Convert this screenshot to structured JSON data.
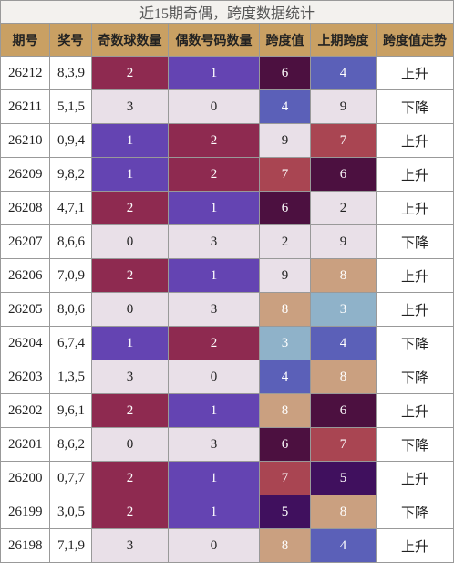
{
  "title": "近15期奇偶，跨度数据统计",
  "table": {
    "headers": [
      "期号",
      "奖号",
      "奇数球数量",
      "偶数号码数量",
      "跨度值",
      "上期跨度",
      "跨度值走势"
    ],
    "rows": [
      [
        "26212",
        "8,3,9",
        2,
        1,
        6,
        4,
        "上升"
      ],
      [
        "26211",
        "5,1,5",
        3,
        0,
        4,
        9,
        "下降"
      ],
      [
        "26210",
        "0,9,4",
        1,
        2,
        9,
        7,
        "上升"
      ],
      [
        "26209",
        "9,8,2",
        1,
        2,
        7,
        6,
        "上升"
      ],
      [
        "26208",
        "4,7,1",
        2,
        1,
        6,
        2,
        "上升"
      ],
      [
        "26207",
        "8,6,6",
        0,
        3,
        2,
        9,
        "下降"
      ],
      [
        "26206",
        "7,0,9",
        2,
        1,
        9,
        8,
        "上升"
      ],
      [
        "26205",
        "8,0,6",
        0,
        3,
        8,
        3,
        "上升"
      ],
      [
        "26204",
        "6,7,4",
        1,
        2,
        3,
        4,
        "下降"
      ],
      [
        "26203",
        "1,3,5",
        3,
        0,
        4,
        8,
        "下降"
      ],
      [
        "26202",
        "9,6,1",
        2,
        1,
        8,
        6,
        "上升"
      ],
      [
        "26201",
        "8,6,2",
        0,
        3,
        6,
        7,
        "下降"
      ],
      [
        "26200",
        "0,7,7",
        2,
        1,
        7,
        5,
        "上升"
      ],
      [
        "26199",
        "3,0,5",
        2,
        1,
        5,
        8,
        "下降"
      ],
      [
        "26198",
        "7,1,9",
        3,
        0,
        8,
        4,
        "上升"
      ]
    ]
  }
}
